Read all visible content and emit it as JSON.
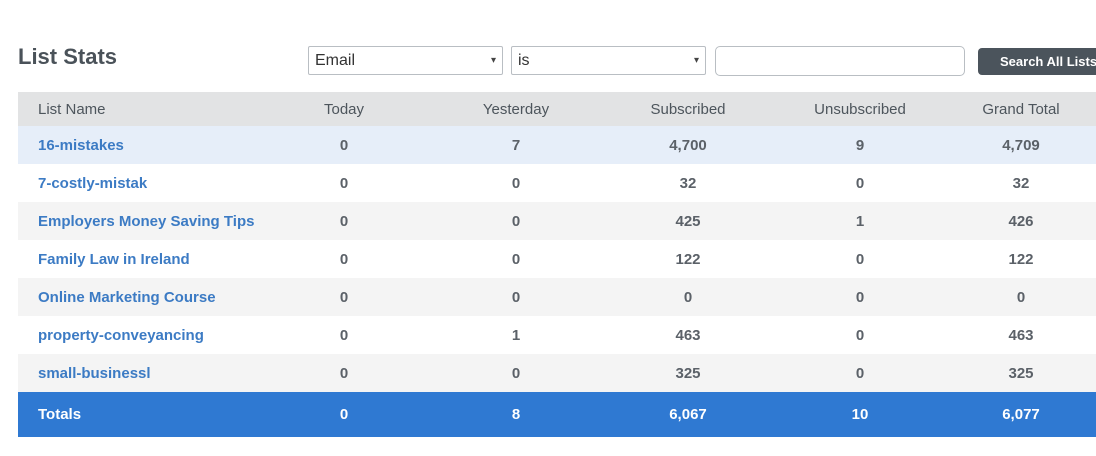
{
  "header": {
    "title": "List Stats"
  },
  "filters": {
    "field_select": {
      "value": "Email"
    },
    "operator_select": {
      "value": "is"
    },
    "search_input": {
      "value": "",
      "placeholder": ""
    },
    "search_button_label": "Search All Lists"
  },
  "table": {
    "columns": [
      "List Name",
      "Today",
      "Yesterday",
      "Subscribed",
      "Unsubscribed",
      "Grand Total"
    ],
    "rows": [
      {
        "name": "16-mistakes",
        "today": "0",
        "yesterday": "7",
        "subscribed": "4,700",
        "unsubscribed": "9",
        "grand_total": "4,709"
      },
      {
        "name": "7-costly-mistak",
        "today": "0",
        "yesterday": "0",
        "subscribed": "32",
        "unsubscribed": "0",
        "grand_total": "32"
      },
      {
        "name": "Employers Money Saving Tips",
        "today": "0",
        "yesterday": "0",
        "subscribed": "425",
        "unsubscribed": "1",
        "grand_total": "426"
      },
      {
        "name": "Family Law in Ireland",
        "today": "0",
        "yesterday": "0",
        "subscribed": "122",
        "unsubscribed": "0",
        "grand_total": "122"
      },
      {
        "name": "Online Marketing Course",
        "today": "0",
        "yesterday": "0",
        "subscribed": "0",
        "unsubscribed": "0",
        "grand_total": "0"
      },
      {
        "name": "property-conveyancing",
        "today": "0",
        "yesterday": "1",
        "subscribed": "463",
        "unsubscribed": "0",
        "grand_total": "463"
      },
      {
        "name": "small-businessl",
        "today": "0",
        "yesterday": "0",
        "subscribed": "325",
        "unsubscribed": "0",
        "grand_total": "325"
      }
    ],
    "totals": {
      "label": "Totals",
      "today": "0",
      "yesterday": "8",
      "subscribed": "6,067",
      "unsubscribed": "10",
      "grand_total": "6,077"
    }
  },
  "colors": {
    "link": "#3c7bc4",
    "totals_bar": "#2f79d2",
    "header_bg": "#e2e3e4",
    "highlight_row": "#e6eef9",
    "button_bg": "#4b545c"
  },
  "icons": {
    "select_caret": "▾"
  }
}
